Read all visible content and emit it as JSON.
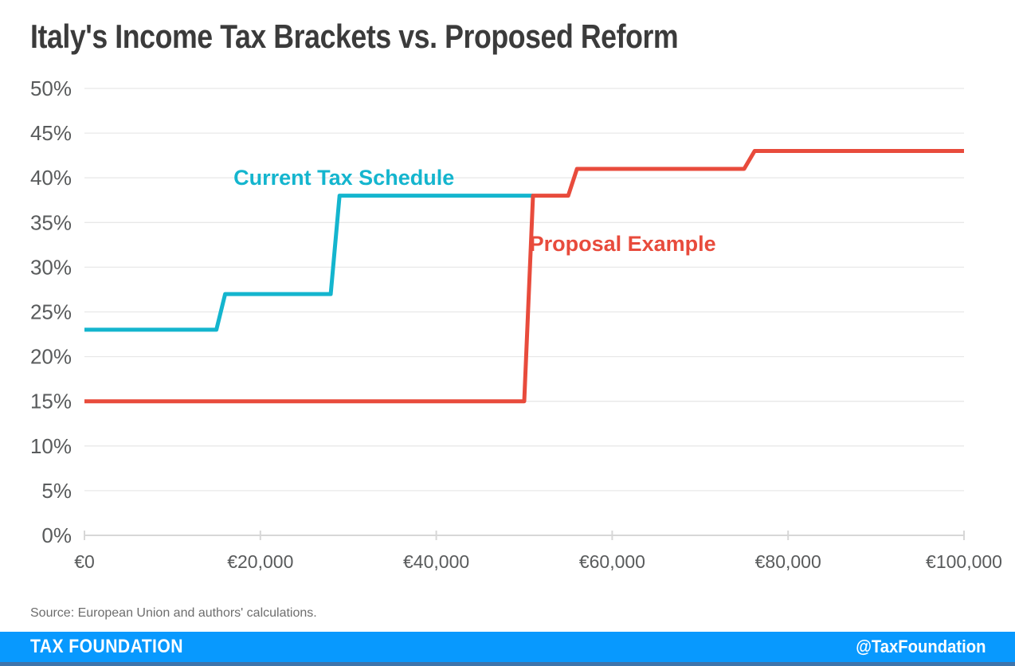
{
  "page": {
    "title": "Italy's Income Tax Brackets vs. Proposed Reform",
    "source_note": "Source: European Union and authors' calculations.",
    "footer": {
      "brand": "TAX FOUNDATION",
      "handle": "@TaxFoundation",
      "bar_color": "#0899fe",
      "strip_color": "#3e74ab"
    }
  },
  "chart_data": {
    "type": "line",
    "subtype": "step",
    "title": "Italy's Income Tax Brackets vs. Proposed Reform",
    "xlabel": "",
    "ylabel": "",
    "xlim": [
      0,
      100000
    ],
    "ylim": [
      0,
      50
    ],
    "grid": "horizontal",
    "legend_position": "inline-annotations",
    "x_ticks": [
      {
        "v": 0,
        "label": "€0"
      },
      {
        "v": 20000,
        "label": "€20,000"
      },
      {
        "v": 40000,
        "label": "€40,000"
      },
      {
        "v": 60000,
        "label": "€60,000"
      },
      {
        "v": 80000,
        "label": "€80,000"
      },
      {
        "v": 100000,
        "label": "€100,000"
      }
    ],
    "y_ticks": [
      {
        "v": 0,
        "label": "0%"
      },
      {
        "v": 5,
        "label": "5%"
      },
      {
        "v": 10,
        "label": "10%"
      },
      {
        "v": 15,
        "label": "15%"
      },
      {
        "v": 20,
        "label": "20%"
      },
      {
        "v": 25,
        "label": "25%"
      },
      {
        "v": 30,
        "label": "30%"
      },
      {
        "v": 35,
        "label": "35%"
      },
      {
        "v": 40,
        "label": "40%"
      },
      {
        "v": 45,
        "label": "45%"
      },
      {
        "v": 50,
        "label": "50%"
      }
    ],
    "series": [
      {
        "name": "Current Tax Schedule",
        "color": "#14b5ce",
        "points": [
          [
            0,
            23
          ],
          [
            15000,
            23
          ],
          [
            16000,
            27
          ],
          [
            28000,
            27
          ],
          [
            29000,
            38
          ],
          [
            51000,
            38
          ]
        ]
      },
      {
        "name": "Proposal Example",
        "color": "#e84b3c",
        "points": [
          [
            0,
            15
          ],
          [
            50000,
            15
          ],
          [
            51000,
            38
          ],
          [
            55000,
            38
          ],
          [
            56000,
            41
          ],
          [
            75000,
            41
          ],
          [
            76200,
            43
          ],
          [
            100000,
            43
          ]
        ]
      }
    ],
    "annotations": [
      {
        "text": "Current Tax Schedule",
        "x": 29500,
        "y": 40.0,
        "color": "#14b5ce"
      },
      {
        "text": "Proposal Example",
        "x": 61200,
        "y": 32.6,
        "color": "#e84b3c"
      }
    ]
  }
}
